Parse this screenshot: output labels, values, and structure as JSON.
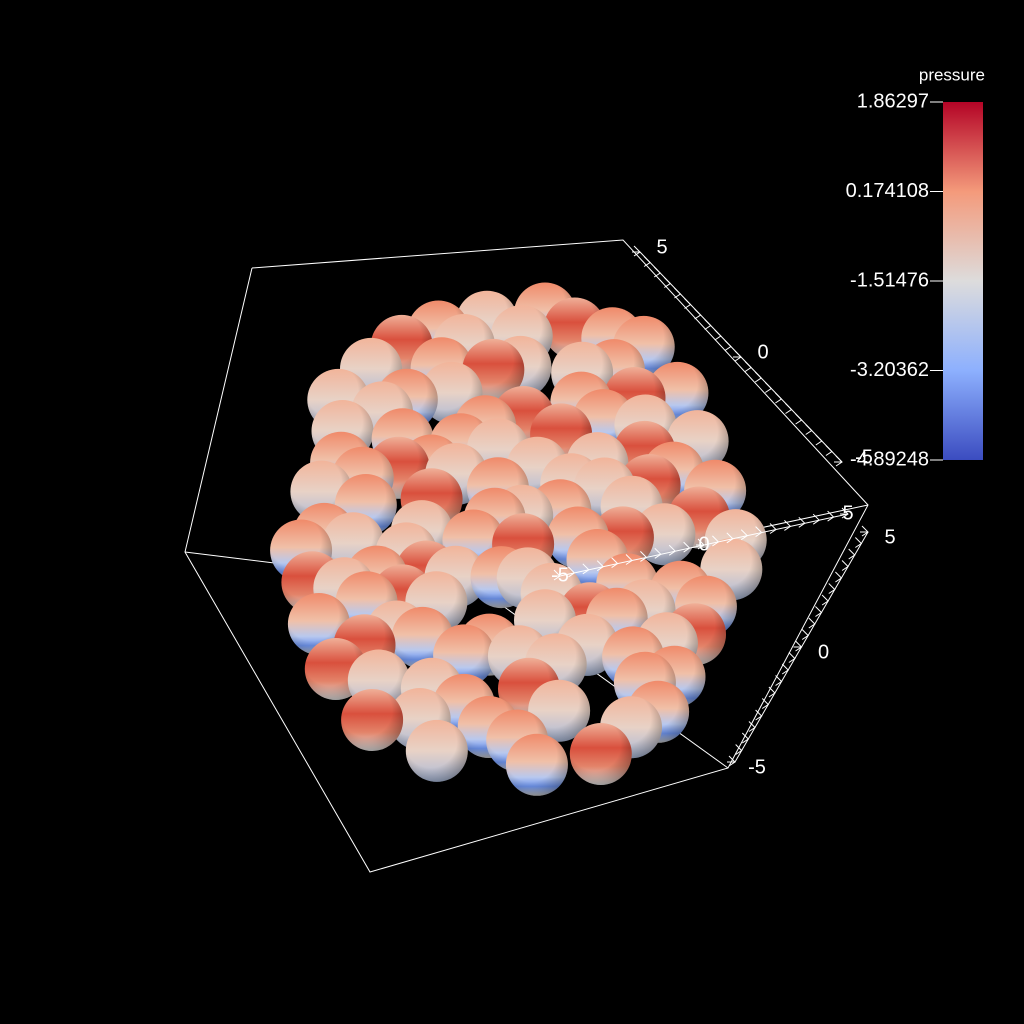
{
  "colorbar": {
    "title": "pressure",
    "ticks": [
      1.86297,
      0.174108,
      -1.51476,
      -3.20362,
      -4.89248
    ]
  },
  "axes": [
    {
      "ticks": [
        5,
        0,
        -5
      ]
    },
    {
      "ticks": [
        -5,
        0,
        5
      ]
    },
    {
      "ticks": [
        5,
        0,
        -5
      ]
    }
  ]
}
